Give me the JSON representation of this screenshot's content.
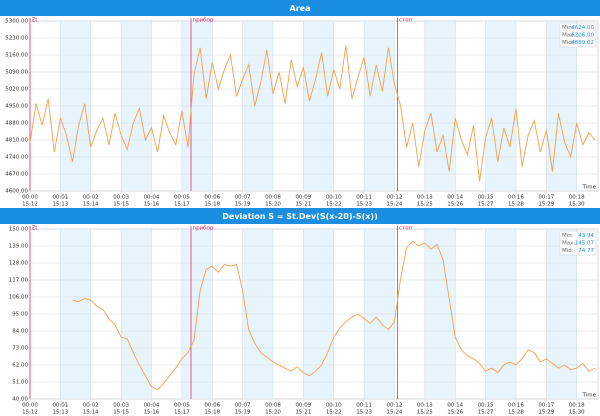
{
  "chart_data": [
    {
      "type": "line",
      "title": "Area",
      "color": "#f5a04a",
      "xlabel": "Time",
      "x": [
        0,
        0.2,
        0.4,
        0.6,
        0.8,
        1,
        1.2,
        1.4,
        1.6,
        1.8,
        2,
        2.2,
        2.4,
        2.6,
        2.8,
        3,
        3.2,
        3.4,
        3.6,
        3.8,
        4,
        4.2,
        4.4,
        4.6,
        4.8,
        5,
        5.2,
        5.4,
        5.6,
        5.8,
        6,
        6.2,
        6.4,
        6.6,
        6.8,
        7,
        7.2,
        7.4,
        7.6,
        7.8,
        8,
        8.2,
        8.4,
        8.6,
        8.8,
        9,
        9.2,
        9.4,
        9.6,
        9.8,
        10,
        10.2,
        10.4,
        10.6,
        10.8,
        11,
        11.2,
        11.4,
        11.6,
        11.8,
        12,
        12.2,
        12.4,
        12.6,
        12.8,
        13,
        13.2,
        13.4,
        13.6,
        13.8,
        14,
        14.2,
        14.4,
        14.6,
        14.8,
        15,
        15.2,
        15.4,
        15.6,
        15.8,
        16,
        16.2,
        16.4,
        16.6,
        16.8,
        17,
        17.2,
        17.4,
        17.6,
        17.8,
        18,
        18.2,
        18.4,
        18.6
      ],
      "values": [
        4800,
        4960,
        4870,
        4980,
        4760,
        4900,
        4830,
        4720,
        4870,
        4960,
        4780,
        4850,
        4900,
        4790,
        4920,
        4830,
        4770,
        4880,
        4940,
        4810,
        4860,
        4760,
        4910,
        4840,
        4790,
        4930,
        4780,
        5080,
        5190,
        4980,
        5130,
        5020,
        5100,
        5160,
        4990,
        5060,
        5120,
        4950,
        5050,
        5180,
        5000,
        5090,
        4960,
        5140,
        5030,
        5110,
        4970,
        5060,
        5170,
        4990,
        5100,
        5020,
        5200,
        4980,
        5070,
        5150,
        4990,
        5120,
        5010,
        5190,
        5040,
        4950,
        4780,
        4880,
        4700,
        4850,
        4920,
        4760,
        4830,
        4680,
        4900,
        4810,
        4750,
        4870,
        4640,
        4820,
        4900,
        4720,
        4860,
        4780,
        4940,
        4700,
        4830,
        4890,
        4760,
        4850,
        4680,
        4920,
        4800,
        4740,
        4880,
        4790,
        4840,
        4810
      ],
      "xlim": [
        0,
        18.7
      ],
      "ylim": [
        4600,
        5300
      ],
      "yticks": [
        {
          "value": 4600,
          "label": "4600.00"
        },
        {
          "value": 4670,
          "label": "4670.00"
        },
        {
          "value": 4740,
          "label": "4740.00"
        },
        {
          "value": 4810,
          "label": "4810.00"
        },
        {
          "value": 4880,
          "label": "4880.00"
        },
        {
          "value": 4950,
          "label": "4950.00"
        },
        {
          "value": 5020,
          "label": "5020.00"
        },
        {
          "value": 5090,
          "label": "5090.00"
        },
        {
          "value": 5160,
          "label": "5160.00"
        },
        {
          "value": 5230,
          "label": "5230.00"
        },
        {
          "value": 5300,
          "label": "5300.00"
        }
      ],
      "xticks": [
        {
          "value": 0,
          "label": "00:00"
        },
        {
          "value": 1,
          "label": "00:01"
        },
        {
          "value": 2,
          "label": "00:02"
        },
        {
          "value": 3,
          "label": "00:03"
        },
        {
          "value": 4,
          "label": "00:04"
        },
        {
          "value": 5,
          "label": "00:05"
        },
        {
          "value": 6,
          "label": "00:06"
        },
        {
          "value": 7,
          "label": "00:07"
        },
        {
          "value": 8,
          "label": "00:08"
        },
        {
          "value": 9,
          "label": "00:09"
        },
        {
          "value": 10,
          "label": "00:10"
        },
        {
          "value": 11,
          "label": "00:11"
        },
        {
          "value": 12,
          "label": "00:12"
        },
        {
          "value": 13,
          "label": "00:13"
        },
        {
          "value": 14,
          "label": "00:14"
        },
        {
          "value": 15,
          "label": "00:15"
        },
        {
          "value": 16,
          "label": "00:16"
        },
        {
          "value": 17,
          "label": "00:17"
        },
        {
          "value": 18,
          "label": "00:18"
        }
      ],
      "clock": [
        "15:12",
        "15:13",
        "15:14",
        "15:15",
        "15:16",
        "15:17",
        "15:18",
        "15:19",
        "15:20",
        "15:21",
        "15:22",
        "15:23",
        "15:24",
        "15:25",
        "15:26",
        "15:27",
        "15:28",
        "15:29",
        "15:30"
      ],
      "markers": [
        {
          "x": 0,
          "label": "Zt"
        },
        {
          "x": 5.3,
          "label": "прибор"
        },
        {
          "x": 12.1,
          "label": "стоп"
        }
      ],
      "stats": [
        {
          "label": "Min:",
          "value": "4624.00"
        },
        {
          "label": "Max:",
          "value": "5206.00"
        },
        {
          "label": "Mid:",
          "value": "4889.02"
        }
      ]
    },
    {
      "type": "line",
      "title": "Deviation S = St.Dev(S(x-20)-S(x))",
      "color": "#f5a04a",
      "xlabel": "Time",
      "x": [
        0,
        0.2,
        0.4,
        0.6,
        0.8,
        1,
        1.2,
        1.4,
        1.6,
        1.8,
        2,
        2.2,
        2.4,
        2.6,
        2.8,
        3,
        3.2,
        3.4,
        3.6,
        3.8,
        4,
        4.2,
        4.4,
        4.6,
        4.8,
        5,
        5.2,
        5.4,
        5.6,
        5.8,
        6,
        6.2,
        6.4,
        6.6,
        6.8,
        7,
        7.2,
        7.4,
        7.6,
        7.8,
        8,
        8.2,
        8.4,
        8.6,
        8.8,
        9,
        9.2,
        9.4,
        9.6,
        9.8,
        10,
        10.2,
        10.4,
        10.6,
        10.8,
        11,
        11.2,
        11.4,
        11.6,
        11.8,
        12,
        12.2,
        12.4,
        12.6,
        12.8,
        13,
        13.2,
        13.4,
        13.6,
        13.8,
        14,
        14.2,
        14.4,
        14.6,
        14.8,
        15,
        15.2,
        15.4,
        15.6,
        15.8,
        16,
        16.2,
        16.4,
        16.6,
        16.8,
        17,
        17.2,
        17.4,
        17.6,
        17.8,
        18,
        18.2,
        18.4,
        18.6
      ],
      "values": [
        null,
        null,
        null,
        null,
        null,
        null,
        null,
        104,
        103,
        105,
        104,
        100,
        98,
        92,
        88,
        80,
        79,
        70,
        62,
        55,
        48,
        46,
        50,
        55,
        60,
        66,
        70,
        78,
        110,
        124,
        126,
        122,
        127,
        126,
        127,
        110,
        85,
        76,
        70,
        67,
        64,
        62,
        60,
        58,
        61,
        57,
        55,
        58,
        62,
        70,
        80,
        86,
        90,
        93,
        95,
        92,
        89,
        93,
        88,
        85,
        90,
        118,
        138,
        142,
        139,
        141,
        137,
        140,
        130,
        105,
        80,
        72,
        68,
        66,
        63,
        58,
        60,
        57,
        62,
        64,
        62,
        66,
        72,
        70,
        64,
        66,
        63,
        60,
        62,
        59,
        60,
        63,
        58,
        60
      ],
      "xlim": [
        0,
        18.7
      ],
      "ylim": [
        40,
        150
      ],
      "yticks": [
        {
          "value": 40,
          "label": "40.00"
        },
        {
          "value": 51,
          "label": "51.00"
        },
        {
          "value": 62,
          "label": "62.00"
        },
        {
          "value": 73,
          "label": "73.00"
        },
        {
          "value": 84,
          "label": "84.00"
        },
        {
          "value": 95,
          "label": "95.00"
        },
        {
          "value": 106,
          "label": "106.00"
        },
        {
          "value": 117,
          "label": "117.00"
        },
        {
          "value": 128,
          "label": "128.00"
        },
        {
          "value": 139,
          "label": "139.00"
        },
        {
          "value": 150,
          "label": "150.00"
        }
      ],
      "xticks": [
        {
          "value": 0,
          "label": "00:00"
        },
        {
          "value": 1,
          "label": "00:01"
        },
        {
          "value": 2,
          "label": "00:02"
        },
        {
          "value": 3,
          "label": "00:03"
        },
        {
          "value": 4,
          "label": "00:04"
        },
        {
          "value": 5,
          "label": "00:05"
        },
        {
          "value": 6,
          "label": "00:06"
        },
        {
          "value": 7,
          "label": "00:07"
        },
        {
          "value": 8,
          "label": "00:08"
        },
        {
          "value": 9,
          "label": "00:09"
        },
        {
          "value": 10,
          "label": "00:10"
        },
        {
          "value": 11,
          "label": "00:11"
        },
        {
          "value": 12,
          "label": "00:12"
        },
        {
          "value": 13,
          "label": "00:13"
        },
        {
          "value": 14,
          "label": "00:14"
        },
        {
          "value": 15,
          "label": "00:15"
        },
        {
          "value": 16,
          "label": "00:16"
        },
        {
          "value": 17,
          "label": "00:17"
        },
        {
          "value": 18,
          "label": "00:18"
        }
      ],
      "clock": [
        "15:12",
        "15:13",
        "15:14",
        "15:15",
        "15:16",
        "15:17",
        "15:18",
        "15:19",
        "15:20",
        "15:21",
        "15:22",
        "15:23",
        "15:24",
        "15:25",
        "15:26",
        "15:27",
        "15:28",
        "15:29",
        "15:30"
      ],
      "markers": [
        {
          "x": 0,
          "label": "Zt"
        },
        {
          "x": 5.3,
          "label": "прибор"
        },
        {
          "x": 12.1,
          "label": "стоп"
        }
      ],
      "stats": [
        {
          "label": "Min:",
          "value": "43.94"
        },
        {
          "label": "Max:",
          "value": "145.07"
        },
        {
          "label": "Mid:",
          "value": "74.77"
        }
      ]
    }
  ]
}
